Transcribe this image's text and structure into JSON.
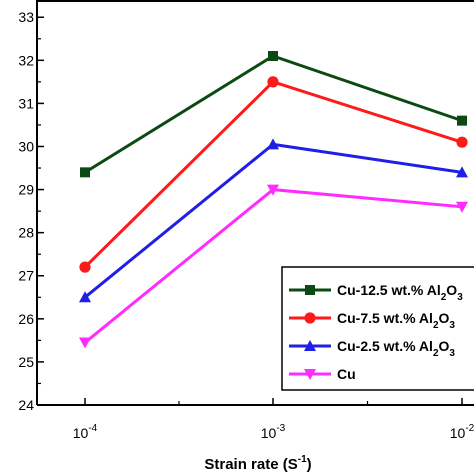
{
  "chart_data": {
    "type": "line",
    "title": "",
    "xlabel": "Strain rate (S",
    "xlabel_sup": "-1",
    "xlabel_close": ")",
    "ylabel": "",
    "x": [
      0.0001,
      0.001,
      0.01
    ],
    "x_tick_labels": [
      {
        "base": "10",
        "exp": "-4"
      },
      {
        "base": "10",
        "exp": "-3"
      },
      {
        "base": "10",
        "exp": "-2"
      }
    ],
    "x_scale": "log",
    "y_ticks": [
      24,
      25,
      26,
      27,
      28,
      29,
      30,
      31,
      32,
      33
    ],
    "ylim": [
      24,
      33.4
    ],
    "grid": false,
    "legend_position": "bottom-right",
    "series": [
      {
        "name_main": "Cu-12.5 wt.% Al",
        "name_sub": "2",
        "name_tail": "O",
        "name_sub2": "3",
        "color": "#0b4a12",
        "marker": "square",
        "values": [
          29.4,
          32.1,
          30.6
        ]
      },
      {
        "name_main": "Cu-7.5 wt.% Al",
        "name_sub": "2",
        "name_tail": "O",
        "name_sub2": "3",
        "color": "#ff1a1a",
        "marker": "circle",
        "values": [
          27.2,
          31.5,
          30.1
        ]
      },
      {
        "name_main": "Cu-2.5 wt.% Al",
        "name_sub": "2",
        "name_tail": "O",
        "name_sub2": "3",
        "color": "#1f1fe6",
        "marker": "triangle-up",
        "values": [
          26.5,
          30.05,
          29.4
        ]
      },
      {
        "name_main": "Cu",
        "name_sub": "",
        "name_tail": "",
        "name_sub2": "",
        "color": "#ff2bff",
        "marker": "triangle-down",
        "values": [
          25.45,
          29.0,
          28.6
        ]
      }
    ]
  }
}
